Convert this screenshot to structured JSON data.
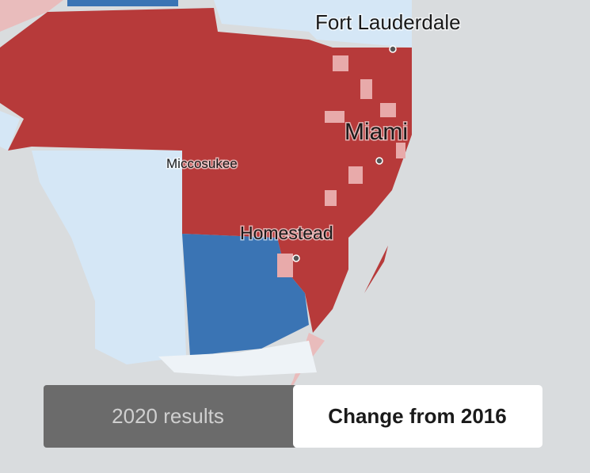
{
  "labels": {
    "fort_lauderdale": "Fort Lauderdale",
    "miami": "Miami",
    "miccosukee": "Miccosukee",
    "homestead": "Homestead"
  },
  "toggle": {
    "results": "2020 results",
    "change": "Change from 2016"
  }
}
